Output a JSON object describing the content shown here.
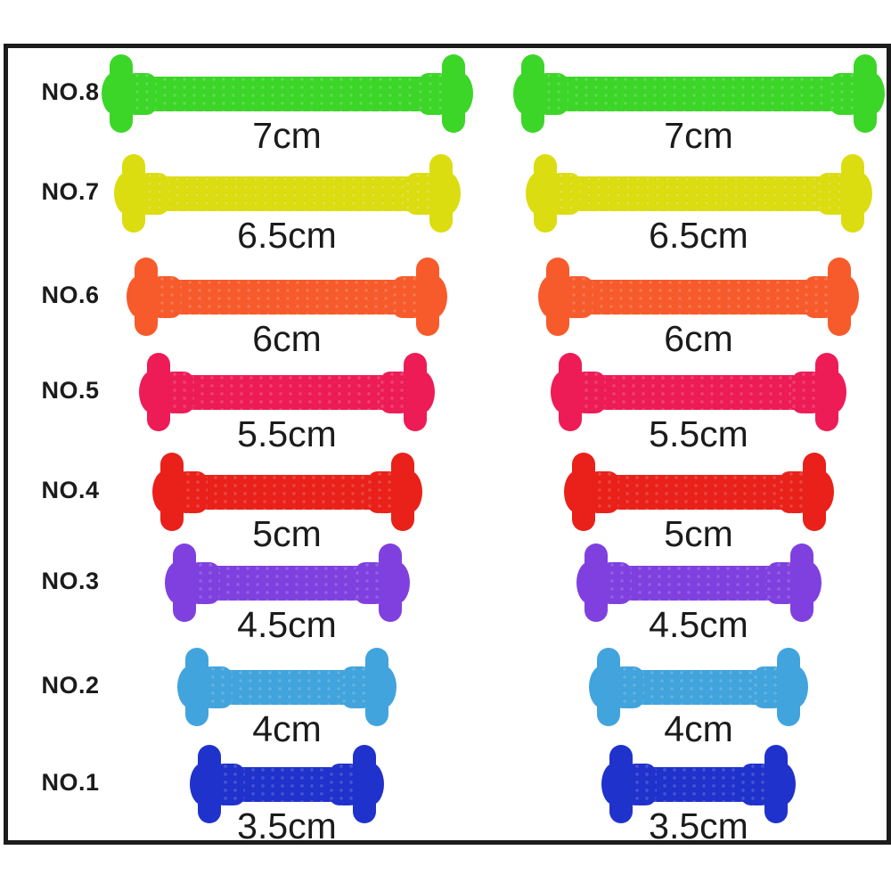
{
  "figure": {
    "description_label": "no-tie silicone shoelace size chart",
    "background_color": "#ffffff",
    "frame_border_color": "#1c1c1c",
    "text_color": "#1b1b1b",
    "columns": 2
  },
  "rows": [
    {
      "number_label": "NO.8",
      "size_label": "7cm",
      "length_cm": 7,
      "color": "#3cd628"
    },
    {
      "number_label": "NO.7",
      "size_label": "6.5cm",
      "length_cm": 6.5,
      "color": "#dcdd10"
    },
    {
      "number_label": "NO.6",
      "size_label": "6cm",
      "length_cm": 6,
      "color": "#f75b2b"
    },
    {
      "number_label": "NO.5",
      "size_label": "5.5cm",
      "length_cm": 5.5,
      "color": "#ee1c56"
    },
    {
      "number_label": "NO.4",
      "size_label": "5cm",
      "length_cm": 5,
      "color": "#e9211a"
    },
    {
      "number_label": "NO.3",
      "size_label": "4.5cm",
      "length_cm": 4.5,
      "color": "#8040e0"
    },
    {
      "number_label": "NO.2",
      "size_label": "4cm",
      "length_cm": 4,
      "color": "#42a4dd"
    },
    {
      "number_label": "NO.1",
      "size_label": "3.5cm",
      "length_cm": 3.5,
      "color": "#2032cc"
    }
  ]
}
